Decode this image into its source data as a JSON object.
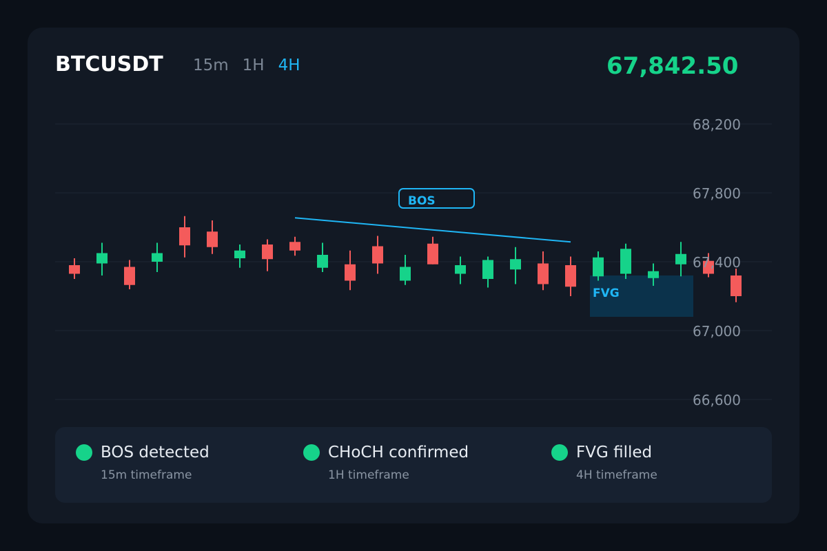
{
  "header": {
    "symbol": "BTCUSDT",
    "timeframes": [
      "15m",
      "1H",
      "4H"
    ],
    "active_timeframe": "4H",
    "price": "67,842.50"
  },
  "colors": {
    "bull": "#16d38a",
    "bear": "#f45b5b",
    "accent": "#1fb6f5",
    "fvg_fill": "#0b3550"
  },
  "chart_data": {
    "type": "candlestick",
    "ylim": [
      66550,
      68250
    ],
    "y_ticks": [
      68200,
      67800,
      67400,
      67000,
      66600
    ],
    "y_tick_labels": [
      "68,200",
      "67,800",
      "67,400",
      "67,000",
      "66,600"
    ],
    "candles": [
      {
        "o": 67380,
        "h": 67420,
        "l": 67300,
        "c": 67330
      },
      {
        "o": 67390,
        "h": 67510,
        "l": 67320,
        "c": 67450
      },
      {
        "o": 67370,
        "h": 67410,
        "l": 67240,
        "c": 67265
      },
      {
        "o": 67400,
        "h": 67510,
        "l": 67340,
        "c": 67450
      },
      {
        "o": 67600,
        "h": 67665,
        "l": 67425,
        "c": 67495
      },
      {
        "o": 67575,
        "h": 67640,
        "l": 67445,
        "c": 67485
      },
      {
        "o": 67420,
        "h": 67500,
        "l": 67365,
        "c": 67465
      },
      {
        "o": 67500,
        "h": 67530,
        "l": 67345,
        "c": 67415
      },
      {
        "o": 67515,
        "h": 67545,
        "l": 67435,
        "c": 67465
      },
      {
        "o": 67365,
        "h": 67510,
        "l": 67340,
        "c": 67440
      },
      {
        "o": 67385,
        "h": 67465,
        "l": 67235,
        "c": 67290
      },
      {
        "o": 67490,
        "h": 67550,
        "l": 67330,
        "c": 67390
      },
      {
        "o": 67290,
        "h": 67440,
        "l": 67265,
        "c": 67370
      },
      {
        "o": 67505,
        "h": 67545,
        "l": 67385,
        "c": 67385
      },
      {
        "o": 67330,
        "h": 67430,
        "l": 67270,
        "c": 67380
      },
      {
        "o": 67300,
        "h": 67430,
        "l": 67250,
        "c": 67410
      },
      {
        "o": 67355,
        "h": 67485,
        "l": 67270,
        "c": 67415
      },
      {
        "o": 67390,
        "h": 67460,
        "l": 67235,
        "c": 67270
      },
      {
        "o": 67380,
        "h": 67430,
        "l": 67200,
        "c": 67255
      },
      {
        "o": 67315,
        "h": 67460,
        "l": 67290,
        "c": 67425
      },
      {
        "o": 67330,
        "h": 67505,
        "l": 67300,
        "c": 67475
      },
      {
        "o": 67305,
        "h": 67390,
        "l": 67260,
        "c": 67345
      },
      {
        "o": 67385,
        "h": 67515,
        "l": 67315,
        "c": 67445
      },
      {
        "o": 67405,
        "h": 67450,
        "l": 67310,
        "c": 67330
      },
      {
        "o": 67320,
        "h": 67360,
        "l": 67165,
        "c": 67200
      }
    ],
    "bos_line": {
      "from_index": 8,
      "to_index": 18,
      "from_price": 67655,
      "to_price": 67515
    },
    "bos_label": "BOS",
    "fvg_zone": {
      "from_index": 19,
      "to_index": 22,
      "top": 67320,
      "bottom": 67080
    },
    "fvg_label": "FVG"
  },
  "legend": [
    {
      "title": "BOS detected",
      "subtitle": "15m timeframe"
    },
    {
      "title": "CHoCH confirmed",
      "subtitle": "1H timeframe"
    },
    {
      "title": "FVG filled",
      "subtitle": "4H timeframe"
    }
  ]
}
